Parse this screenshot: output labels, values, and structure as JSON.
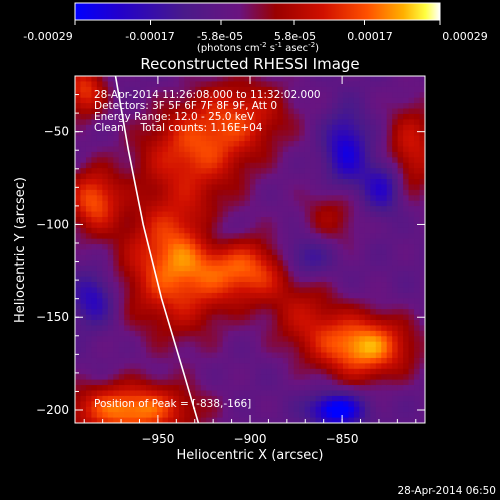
{
  "colorbar": {
    "tick_labels": [
      "-0.00029",
      "-0.00017",
      "-5.8e-05",
      "5.8e-05",
      "0.00017",
      "0.00029"
    ],
    "tick_values": [
      -0.00029,
      -0.00017,
      -5.8e-05,
      5.8e-05,
      0.00017,
      0.00029
    ],
    "range": [
      -0.00029,
      0.00029
    ],
    "units_label": "(photons cm",
    "units_sup1": "-2",
    "units_mid": " s",
    "units_sup2": "-1",
    "units_end": " asec",
    "units_sup3": "-2",
    "units_close": ")",
    "colors": [
      "#0000ff",
      "#2200cc",
      "#4a1a8a",
      "#6a1480",
      "#9a0000",
      "#d01000",
      "#ff5000",
      "#ffb000",
      "#ffff40",
      "#ffffff"
    ]
  },
  "chart_data": {
    "type": "heatmap",
    "title": "Reconstructed RHESSI Image",
    "xlabel": "Heliocentric X (arcsec)",
    "ylabel": "Heliocentric Y (arcsec)",
    "xlim": [
      -995,
      -805
    ],
    "ylim": [
      -207,
      -20
    ],
    "x_ticks": [
      -950,
      -900,
      -850
    ],
    "y_ticks": [
      -50,
      -100,
      -150,
      -200
    ],
    "annotations": [
      "28-Apr-2014 11:26:08.000 to 11:32:02.000",
      "Detectors: 3F 5F 6F 7F 8F 9F, Att 0",
      "Energy Range: 12.0 - 25.0 keV",
      "Clean     Total counts: 1.16E+04"
    ],
    "peak_label": "Position of Peak = [-838,-166]",
    "peak": [
      -838,
      -166
    ],
    "limb": [
      [
        -973,
        -20
      ],
      [
        -966,
        -60
      ],
      [
        -958,
        -100
      ],
      [
        -948,
        -140
      ],
      [
        -936,
        -180
      ],
      [
        -928,
        -207
      ]
    ],
    "hot_spots": [
      {
        "x": -940,
        "y": -120,
        "sx": 20,
        "sy": 26,
        "amp": 0.00026
      },
      {
        "x": -900,
        "y": -125,
        "sx": 16,
        "sy": 12,
        "amp": 0.0002
      },
      {
        "x": -838,
        "y": -166,
        "sx": 18,
        "sy": 12,
        "amp": 0.00029
      },
      {
        "x": -870,
        "y": -150,
        "sx": 14,
        "sy": 14,
        "amp": 0.00012
      },
      {
        "x": -965,
        "y": -200,
        "sx": 24,
        "sy": 10,
        "amp": 0.00027
      },
      {
        "x": -930,
        "y": -60,
        "sx": 22,
        "sy": 16,
        "amp": 0.00018
      },
      {
        "x": -905,
        "y": -40,
        "sx": 20,
        "sy": 14,
        "amp": 0.00015
      },
      {
        "x": -985,
        "y": -87,
        "sx": 10,
        "sy": 12,
        "amp": 0.00022
      },
      {
        "x": -990,
        "y": -28,
        "sx": 8,
        "sy": 10,
        "amp": 0.0002
      },
      {
        "x": -812,
        "y": -60,
        "sx": 10,
        "sy": 18,
        "amp": 0.00016
      },
      {
        "x": -855,
        "y": -95,
        "sx": 12,
        "sy": 12,
        "amp": 0.0001
      }
    ],
    "cold_spots": [
      {
        "x": -848,
        "y": -60,
        "sx": 8,
        "sy": 14,
        "amp": -0.00018
      },
      {
        "x": -828,
        "y": -80,
        "sx": 8,
        "sy": 10,
        "amp": -0.00016
      },
      {
        "x": -985,
        "y": -140,
        "sx": 8,
        "sy": 10,
        "amp": -0.00015
      },
      {
        "x": -853,
        "y": -200,
        "sx": 10,
        "sy": 6,
        "amp": -0.00026
      },
      {
        "x": -918,
        "y": -105,
        "sx": 10,
        "sy": 8,
        "amp": -0.0001
      },
      {
        "x": -870,
        "y": -118,
        "sx": 10,
        "sy": 8,
        "amp": -0.00012
      }
    ],
    "grid": false
  },
  "footer": {
    "timestamp": "28-Apr-2014 06:50"
  }
}
